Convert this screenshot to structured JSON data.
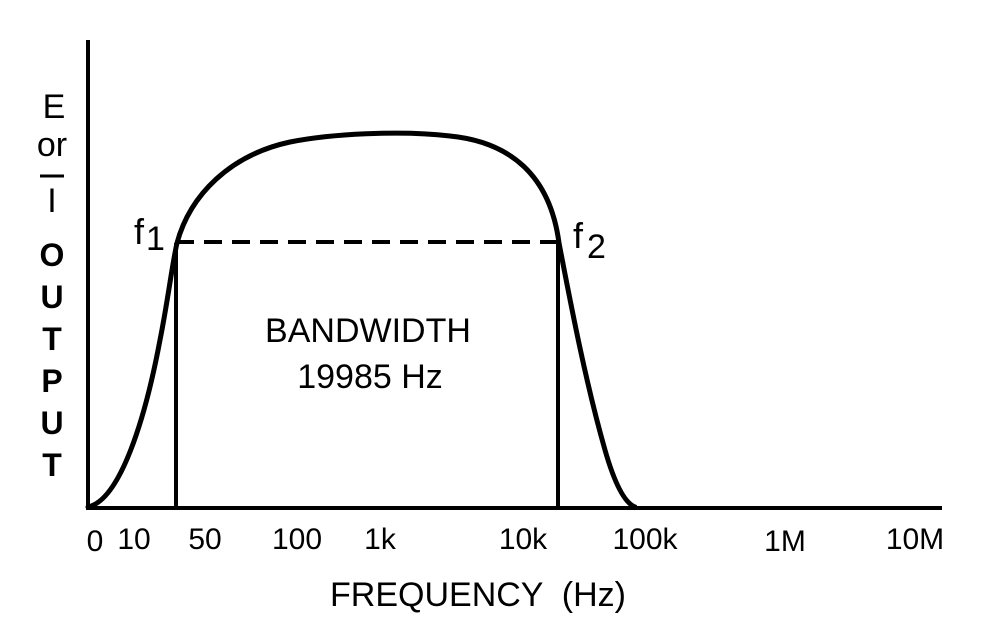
{
  "diagram": {
    "y_axis": {
      "top_lines": [
        "E",
        "or"
      ],
      "current_symbol": "I",
      "word_letters": [
        "O",
        "U",
        "T",
        "P",
        "U",
        "T"
      ]
    },
    "x_axis": {
      "title": "FREQUENCY  (Hz)",
      "ticks": [
        "0",
        "10",
        "50",
        "100",
        "1k",
        "10k",
        "100k",
        "1M",
        "10M"
      ]
    },
    "markers": {
      "f1": {
        "letter": "f",
        "subscript": "1"
      },
      "f2": {
        "letter": "f",
        "subscript": "2"
      }
    },
    "bandwidth": {
      "label": "BANDWIDTH",
      "value": "19985  Hz"
    }
  }
}
